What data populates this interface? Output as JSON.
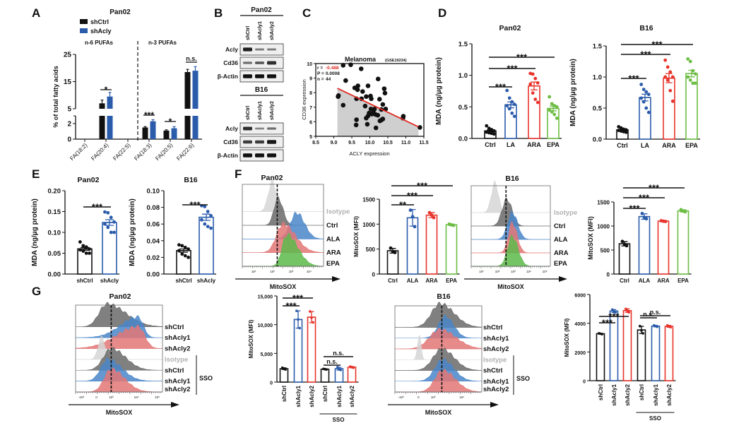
{
  "panel_labels": [
    "A",
    "B",
    "C",
    "D",
    "E",
    "F",
    "G"
  ],
  "colors": {
    "black": "#111111",
    "blue": "#2b5cab",
    "red": "#e8332b",
    "green": "#6dbd45",
    "isotype": "#d6d6d6",
    "ctrl_hist": "#6a6a6a",
    "blue_hist": "#4a86c8",
    "red_hist": "#e27575",
    "green_hist": "#5cb84a"
  },
  "blots": [
    {
      "title": "Pan02",
      "lanes": [
        "shCtrl",
        "shAcly1",
        "shAcly2"
      ],
      "rows": [
        {
          "label": "Acly",
          "intensity": [
            0.9,
            0.25,
            0.25
          ]
        },
        {
          "label": "Cd36",
          "intensity": [
            0.35,
            0.5,
            0.8
          ]
        },
        {
          "label": "β-Actin",
          "intensity": [
            1,
            1,
            1
          ]
        }
      ]
    },
    {
      "title": "B16",
      "lanes": [
        "shCtrl",
        "shAcly1",
        "shAcly2"
      ],
      "rows": [
        {
          "label": "Acly",
          "intensity": [
            0.8,
            0.2,
            0.35
          ]
        },
        {
          "label": "Cd36",
          "intensity": [
            0.7,
            0.7,
            0.95
          ]
        },
        {
          "label": "β-Actin",
          "intensity": [
            1,
            1,
            1
          ]
        }
      ]
    }
  ],
  "histograms": [
    {
      "title": "Pan02",
      "xlabel": "MitoSOX",
      "ticks": [
        "10¹",
        "10²",
        "10³",
        "10⁴"
      ],
      "tracks": [
        {
          "label": "Isotype",
          "color": "#d6d6d6",
          "label_color": "#b0b0b0"
        },
        {
          "label": "Ctrl",
          "color": "#6a6a6a"
        },
        {
          "label": "ALA",
          "color": "#4a86c8"
        },
        {
          "label": "ARA",
          "color": "#e27575"
        },
        {
          "label": "EPA",
          "color": "#5cb84a"
        }
      ]
    },
    {
      "title": "B16",
      "xlabel": "MitoSOX",
      "ticks": [
        "10¹",
        "10²",
        "10³",
        "10⁴",
        "10⁵"
      ],
      "tracks": [
        {
          "label": "Isotype",
          "color": "#d6d6d6",
          "label_color": "#b0b0b0"
        },
        {
          "label": "Ctrl",
          "color": "#6a6a6a"
        },
        {
          "label": "ALA",
          "color": "#4a86c8"
        },
        {
          "label": "ARA",
          "color": "#e27575"
        },
        {
          "label": "EPA",
          "color": "#5cb84a"
        }
      ]
    },
    {
      "title": "Pan02",
      "xlabel": "MitoSOX",
      "ticks": [
        "-10³",
        "0",
        "10³",
        "10⁴",
        "10⁵"
      ],
      "group_label": "SSO",
      "tracks": [
        {
          "label": "shCtrl",
          "color": "#6a6a6a"
        },
        {
          "label": "shAcly1",
          "color": "#4a86c8"
        },
        {
          "label": "shAcly2",
          "color": "#e27575"
        },
        {
          "label": "Isotype",
          "color": "#d6d6d6",
          "label_color": "#b0b0b0"
        },
        {
          "label": "shCtrl",
          "color": "#6a6a6a"
        },
        {
          "label": "shAcly1",
          "color": "#4a86c8"
        },
        {
          "label": "shAcly2",
          "color": "#e27575"
        }
      ]
    },
    {
      "title": "B16",
      "xlabel": "MitoSOX",
      "ticks": [
        "-10³",
        "0",
        "10³",
        "10⁴"
      ],
      "group_label": "SSO",
      "tracks": [
        {
          "label": "shCtrl",
          "color": "#6a6a6a"
        },
        {
          "label": "shAcly1",
          "color": "#4a86c8"
        },
        {
          "label": "shAcly2",
          "color": "#e27575"
        },
        {
          "label": "Isotype",
          "color": "#d6d6d6",
          "label_color": "#b0b0b0"
        },
        {
          "label": "shCtrl",
          "color": "#6a6a6a"
        },
        {
          "label": "shAcly1",
          "color": "#4a86c8"
        },
        {
          "label": "shAcly2",
          "color": "#e27575"
        }
      ]
    }
  ],
  "chart_data": [
    {
      "id": "A",
      "type": "bar",
      "title": "Pan02",
      "ylabel": "% of total fatty acids",
      "categories": [
        "FA(18:2)",
        "FA(20:4)",
        "FA(22:5)",
        "FA(18:3)",
        "FA(20:5)",
        "FA(22:6)"
      ],
      "groups": [
        "n-6 PUFAs",
        "n-3 PUFAs"
      ],
      "series": [
        {
          "name": "shCtrl",
          "color": "#111111",
          "values": [
            0,
            7,
            0,
            1.5,
            1.1,
            18.5
          ],
          "error": [
            0,
            1.2,
            0,
            0.1,
            0.1,
            1.0
          ]
        },
        {
          "name": "shAcly",
          "color": "#2b5cab",
          "values": [
            0,
            9.5,
            0,
            2.3,
            1.4,
            19
          ],
          "error": [
            0,
            1.5,
            0,
            0.2,
            0.2,
            1.5
          ]
        }
      ],
      "yticks": [
        "0",
        "2",
        "5",
        "15",
        "25"
      ],
      "y_axis_break": [
        3,
        5
      ],
      "ylim": [
        0,
        25
      ],
      "significance": [
        {
          "category": 1,
          "label": "*"
        },
        {
          "category": 3,
          "label": "***"
        },
        {
          "category": 4,
          "label": "*"
        },
        {
          "category": 5,
          "label": "n.s."
        }
      ]
    },
    {
      "id": "C",
      "type": "scatter",
      "title": "Melanoma",
      "title_note": "(GSE19234)",
      "xlabel": "ACLY expression",
      "ylabel": "CD36 expression",
      "xlim": [
        8.5,
        11.5
      ],
      "ylim": [
        5,
        10
      ],
      "xticks": [
        "8.5",
        "9.0",
        "9.5",
        "10.0",
        "10.5",
        "11.0",
        "11.5"
      ],
      "yticks": [
        "5",
        "6",
        "7",
        "8",
        "9",
        "10"
      ],
      "stats": {
        "r_label": "r = ",
        "r": "-0.488",
        "p_label": "P = ",
        "p": "0.0008",
        "n_label": "n = ",
        "n": "44"
      },
      "regression": {
        "x": [
          9.1,
          11.35
        ],
        "y": [
          8.3,
          5.65
        ]
      },
      "points": [
        [
          9.12,
          7.73
        ],
        [
          9.13,
          7.8
        ],
        [
          9.26,
          9.88
        ],
        [
          9.47,
          9.92
        ],
        [
          9.33,
          8.83
        ],
        [
          9.26,
          7.14
        ],
        [
          9.76,
          9.64
        ],
        [
          9.58,
          8.33
        ],
        [
          9.67,
          8.47
        ],
        [
          9.66,
          8.2
        ],
        [
          9.8,
          8.08
        ],
        [
          9.95,
          8.47
        ],
        [
          9.63,
          7.58
        ],
        [
          9.77,
          7.58
        ],
        [
          9.9,
          7.73
        ],
        [
          10.02,
          7.77
        ],
        [
          10.04,
          7.58
        ],
        [
          9.87,
          7.08
        ],
        [
          10.03,
          6.88
        ],
        [
          10.1,
          6.75
        ],
        [
          9.98,
          6.6
        ],
        [
          9.95,
          6.4
        ],
        [
          9.9,
          6.25
        ],
        [
          10.06,
          6.53
        ],
        [
          10.13,
          6.88
        ],
        [
          9.63,
          6.14
        ],
        [
          9.62,
          5.78
        ],
        [
          9.93,
          5.83
        ],
        [
          10.17,
          5.58
        ],
        [
          10.23,
          8.94
        ],
        [
          10.27,
          7.55
        ],
        [
          10.22,
          6.45
        ],
        [
          10.28,
          6.06
        ],
        [
          10.32,
          6.12
        ],
        [
          10.36,
          6.19
        ],
        [
          10.36,
          7.19
        ],
        [
          10.32,
          6.84
        ],
        [
          10.4,
          8.27
        ],
        [
          10.42,
          7.97
        ],
        [
          10.44,
          6.88
        ],
        [
          10.93,
          6.38
        ],
        [
          10.92,
          6.25
        ],
        [
          11.39,
          5.61
        ],
        [
          10.16,
          6.5
        ]
      ]
    },
    {
      "id": "D-Pan02",
      "type": "bar",
      "title": "Pan02",
      "ylabel": "MDA (ng/μg protein)",
      "categories": [
        "Ctrl",
        "LA",
        "ARA",
        "EPA"
      ],
      "yticks": [
        "0.0",
        "0.5",
        "1.0",
        "1.5"
      ],
      "ylim": [
        0,
        1.5
      ],
      "colors": [
        "#111111",
        "#2b5cab",
        "#e8332b",
        "#6dbd45"
      ],
      "error": "sem",
      "points": [
        [
          0.2,
          0.16,
          0.14,
          0.12,
          0.1,
          0.09,
          0.08,
          0.07
        ],
        [
          0.76,
          0.64,
          0.58,
          0.54,
          0.52,
          0.47,
          0.4,
          0.35
        ],
        [
          1.03,
          1.02,
          0.95,
          0.88,
          0.86,
          0.72,
          0.62,
          0.57
        ],
        [
          0.66,
          0.55,
          0.52,
          0.5,
          0.45,
          0.42,
          0.38,
          0.32
        ]
      ],
      "significance": [
        {
          "from": 0,
          "to": 1,
          "label": "***"
        },
        {
          "from": 0,
          "to": 2,
          "label": "***"
        },
        {
          "from": 0,
          "to": 3,
          "label": "***"
        }
      ]
    },
    {
      "id": "D-B16",
      "type": "bar",
      "title": "B16",
      "ylabel": "MDA (ng/μg protein)",
      "categories": [
        "Ctrl",
        "LA",
        "ARA",
        "EPA"
      ],
      "yticks": [
        "0.0",
        "0.5",
        "1.0",
        "1.5"
      ],
      "ylim": [
        0,
        1.5
      ],
      "colors": [
        "#111111",
        "#2b5cab",
        "#e8332b",
        "#6dbd45"
      ],
      "error": "sem",
      "points": [
        [
          0.2,
          0.18,
          0.16,
          0.15,
          0.14,
          0.13,
          0.12,
          0.11
        ],
        [
          0.88,
          0.8,
          0.76,
          0.72,
          0.66,
          0.6,
          0.5,
          0.43
        ],
        [
          1.27,
          1.16,
          1.08,
          1.0,
          1.0,
          0.95,
          0.78,
          0.61
        ],
        [
          1.29,
          1.25,
          1.1,
          1.05,
          1.0,
          0.95,
          0.9,
          0.9
        ]
      ],
      "significance": [
        {
          "from": 0,
          "to": 1,
          "label": "***"
        },
        {
          "from": 0,
          "to": 2,
          "label": "***"
        },
        {
          "from": 0,
          "to": 3,
          "label": "***"
        }
      ]
    },
    {
      "id": "E-Pan02",
      "type": "bar",
      "title": "Pan02",
      "ylabel": "MDA (ng/μg protein)",
      "categories": [
        "shCtrl",
        "shAcly"
      ],
      "yticks": [
        "0.00",
        "0.05",
        "0.10",
        "0.15",
        "0.20"
      ],
      "ylim": [
        0,
        0.2
      ],
      "colors": [
        "#111111",
        "#2b5cab"
      ],
      "error": "sem",
      "points": [
        [
          0.077,
          0.068,
          0.065,
          0.06,
          0.058,
          0.055,
          0.05,
          0.05
        ],
        [
          0.149,
          0.147,
          0.136,
          0.125,
          0.12,
          0.112,
          0.1,
          0.1
        ]
      ],
      "significance": [
        {
          "from": 0,
          "to": 1,
          "label": "***"
        }
      ]
    },
    {
      "id": "E-B16",
      "type": "bar",
      "title": "B16",
      "ylabel": "MDA (ng/μg protein)",
      "categories": [
        "shCtrl",
        "shAcly"
      ],
      "yticks": [
        "0.00",
        "0.02",
        "0.04",
        "0.06",
        "0.08",
        "0.10"
      ],
      "ylim": [
        0,
        0.1
      ],
      "colors": [
        "#111111",
        "#2b5cab"
      ],
      "error": "sem",
      "points": [
        [
          0.035,
          0.034,
          0.032,
          0.03,
          0.028,
          0.024,
          0.022,
          0.02
        ],
        [
          0.082,
          0.081,
          0.075,
          0.07,
          0.065,
          0.06,
          0.057,
          0.055
        ]
      ],
      "significance": [
        {
          "from": 0,
          "to": 1,
          "label": "***"
        }
      ]
    },
    {
      "id": "F-Pan02",
      "type": "bar",
      "title": "",
      "ylabel": "MitoSOX (MFI)",
      "categories": [
        "Ctrl",
        "ALA",
        "ARA",
        "EPA"
      ],
      "yticks": [
        "0",
        "500",
        "1000",
        "1500"
      ],
      "ylim": [
        0,
        1500
      ],
      "colors": [
        "#111111",
        "#2b5cab",
        "#e8332b",
        "#6dbd45"
      ],
      "error": "sd",
      "points": [
        [
          520,
          450,
          430
        ],
        [
          1280,
          1150,
          950
        ],
        [
          1230,
          1180,
          1130
        ],
        [
          1000,
          985,
          975
        ]
      ],
      "significance": [
        {
          "from": 0,
          "to": 1,
          "label": "**"
        },
        {
          "from": 0,
          "to": 2,
          "label": "***"
        },
        {
          "from": 0,
          "to": 3,
          "label": "***"
        }
      ]
    },
    {
      "id": "F-B16",
      "type": "bar",
      "title": "",
      "ylabel": "MitoSOX (MFI)",
      "categories": [
        "Ctrl",
        "ALA",
        "ARA",
        "EPA"
      ],
      "yticks": [
        "0",
        "500",
        "1000",
        "1500"
      ],
      "ylim": [
        0,
        1500
      ],
      "colors": [
        "#111111",
        "#2b5cab",
        "#e8332b",
        "#6dbd45"
      ],
      "error": "sd",
      "points": [
        [
          680,
          620,
          590
        ],
        [
          1260,
          1180,
          1150
        ],
        [
          1110,
          1100,
          1095
        ],
        [
          1340,
          1310,
          1295
        ]
      ],
      "significance": [
        {
          "from": 0,
          "to": 1,
          "label": "***"
        },
        {
          "from": 0,
          "to": 2,
          "label": "***"
        },
        {
          "from": 0,
          "to": 3,
          "label": "***"
        }
      ]
    },
    {
      "id": "G-Pan02",
      "type": "bar",
      "title": "",
      "ylabel": "MitoSOX (MFI)",
      "categories": [
        "shCtrl",
        "shAcly1",
        "shAcly2",
        "shCtrl",
        "shAcly1",
        "shAcly2"
      ],
      "group_label": "SSO",
      "yticks": [
        "0",
        "5,000",
        "10,000",
        "15,000"
      ],
      "ylim": [
        0,
        15000
      ],
      "colors": [
        "#111111",
        "#2b5cab",
        "#e8332b",
        "#111111",
        "#2b5cab",
        "#e8332b"
      ],
      "error": "sd",
      "points": [
        [
          2500,
          2300,
          2200
        ],
        [
          12400,
          10900,
          9400
        ],
        [
          12300,
          11200,
          10400
        ],
        [
          2300,
          2250,
          2200
        ],
        [
          2600,
          2300,
          2100
        ],
        [
          2700,
          2600,
          2500
        ]
      ],
      "significance": [
        {
          "from": 0,
          "to": 1,
          "label": "***"
        },
        {
          "from": 0,
          "to": 2,
          "label": "***"
        },
        {
          "from": 3,
          "to": 4,
          "label": "n.s."
        },
        {
          "from": 3,
          "to": 5,
          "label": "n.s."
        }
      ]
    },
    {
      "id": "G-B16",
      "type": "bar",
      "title": "",
      "ylabel": "MitoSOX (MFI)",
      "categories": [
        "shCtrl",
        "shAcly1",
        "shAcly2",
        "shCtrl",
        "shAcly1",
        "shAcly2"
      ],
      "group_label": "SSO",
      "yticks": [
        "0",
        "2000",
        "4000",
        "6000"
      ],
      "ylim": [
        0,
        6000
      ],
      "colors": [
        "#111111",
        "#2b5cab",
        "#e8332b",
        "#111111",
        "#2b5cab",
        "#e8332b"
      ],
      "error": "sd",
      "points": [
        [
          3300,
          3270,
          3240
        ],
        [
          4950,
          4850,
          4750
        ],
        [
          5000,
          4880,
          4760
        ],
        [
          3800,
          3500,
          3300
        ],
        [
          3850,
          3800,
          3750
        ],
        [
          3850,
          3780,
          3720
        ]
      ],
      "significance": [
        {
          "from": 0,
          "to": 1,
          "label": "***"
        },
        {
          "from": 0,
          "to": 2,
          "label": "***"
        },
        {
          "from": 3,
          "to": 4,
          "label": "n.s."
        },
        {
          "from": 3,
          "to": 5,
          "label": "n.s."
        }
      ]
    }
  ]
}
